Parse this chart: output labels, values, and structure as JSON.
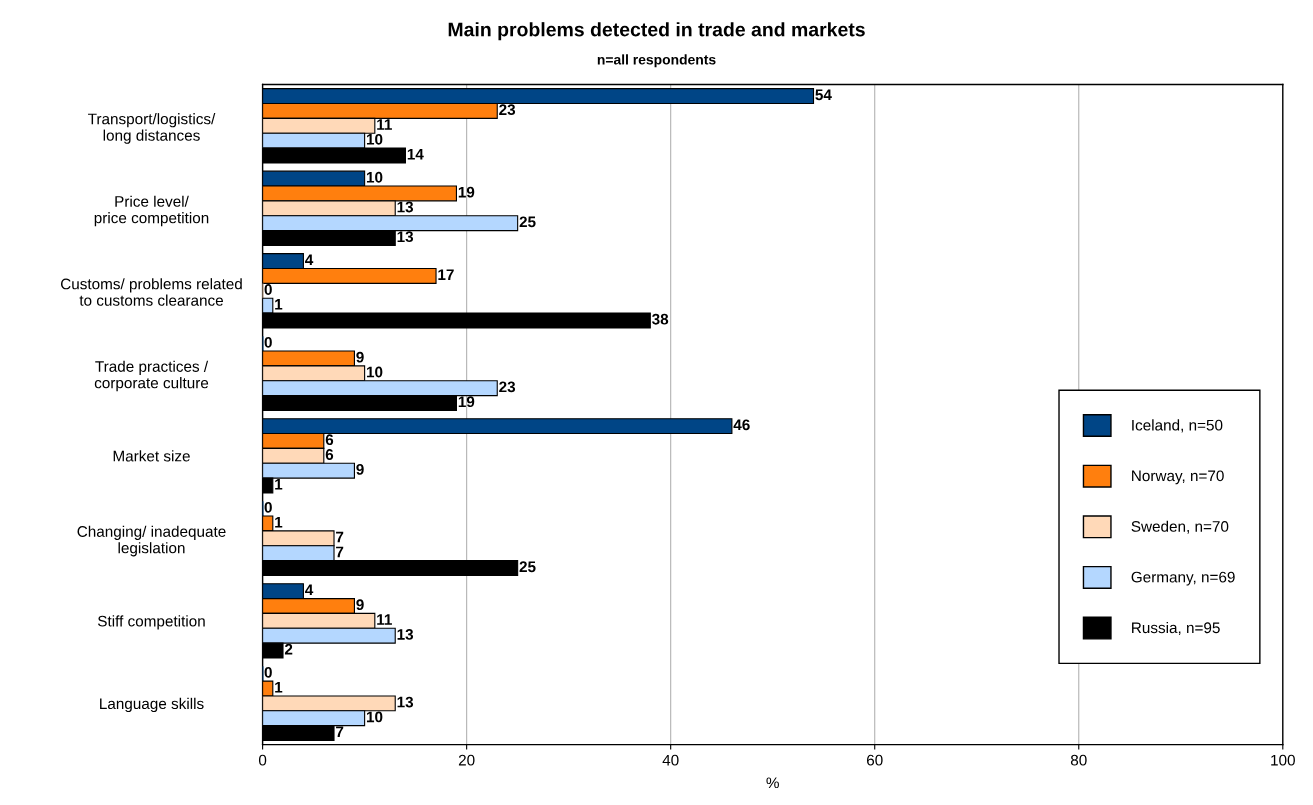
{
  "chart_data": {
    "type": "bar",
    "orientation": "horizontal",
    "title": "Main problems detected in trade and markets",
    "subtitle": "n=all respondents",
    "xlabel": "%",
    "categories": [
      "Transport/logistics/\nlong distances",
      "Price level/\nprice competition",
      "Customs/ problems related\nto customs clearance",
      "Trade practices /\ncorporate culture",
      "Market size",
      "Changing/ inadequate\nlegislation",
      "Stiff competition",
      "Language skills"
    ],
    "series": [
      {
        "name": "Iceland, n=50",
        "color": "#004586",
        "values": [
          54,
          10,
          4,
          0,
          46,
          0,
          4,
          0
        ]
      },
      {
        "name": "Norway, n=70",
        "color": "#ff7f0e",
        "values": [
          23,
          19,
          17,
          9,
          6,
          1,
          9,
          1
        ]
      },
      {
        "name": "Sweden, n=70",
        "color": "#ffd9b8",
        "values": [
          11,
          13,
          0,
          10,
          6,
          7,
          11,
          13
        ]
      },
      {
        "name": "Germany, n=69",
        "color": "#b4d7ff",
        "values": [
          10,
          25,
          1,
          23,
          9,
          7,
          13,
          10
        ]
      },
      {
        "name": "Russia, n=95",
        "color": "#000000",
        "values": [
          14,
          13,
          38,
          19,
          1,
          25,
          2,
          7
        ]
      }
    ],
    "xlim": [
      0,
      100
    ],
    "xticks": [
      0,
      20,
      40,
      60,
      80,
      100
    ],
    "grid": "x",
    "legend": "right",
    "data_labels": true
  }
}
